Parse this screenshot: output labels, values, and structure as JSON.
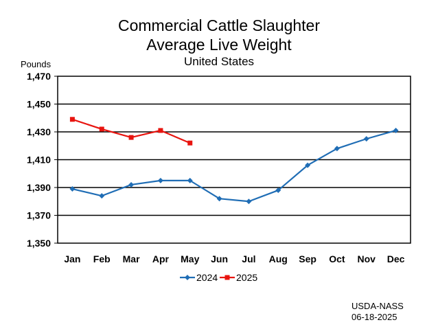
{
  "chart_data": {
    "type": "line",
    "title": "Commercial Cattle Slaughter",
    "title_line2": "Average Live Weight",
    "subtitle": "United States",
    "ylabel": "Pounds",
    "ylim": [
      1350,
      1470
    ],
    "yticks": [
      1350,
      1370,
      1390,
      1410,
      1430,
      1450,
      1470
    ],
    "ytick_labels": [
      "1,350",
      "1,370",
      "1,390",
      "1,410",
      "1,430",
      "1,450",
      "1,470"
    ],
    "categories": [
      "Jan",
      "Feb",
      "Mar",
      "Apr",
      "May",
      "Jun",
      "Jul",
      "Aug",
      "Sep",
      "Oct",
      "Nov",
      "Dec"
    ],
    "grid": "horizontal",
    "legend_position": "bottom",
    "series": [
      {
        "name": "2024",
        "color": "#1F6DB5",
        "marker": "diamond",
        "values": [
          1389,
          1384,
          1392,
          1395,
          1395,
          1382,
          1380,
          1388,
          1406,
          1418,
          1425,
          1431
        ]
      },
      {
        "name": "2025",
        "color": "#E8140F",
        "marker": "square",
        "values": [
          1439,
          1432,
          1426,
          1431,
          1422,
          null,
          null,
          null,
          null,
          null,
          null,
          null
        ]
      }
    ]
  },
  "source": {
    "line1": "USDA-NASS",
    "line2": "06-18-2025"
  }
}
